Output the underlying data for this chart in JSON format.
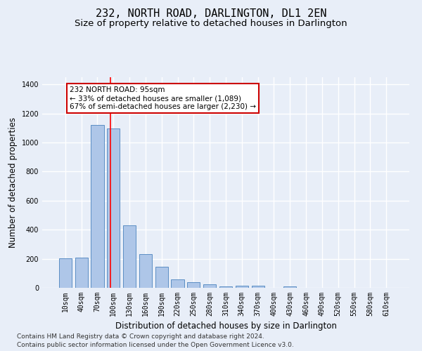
{
  "title": "232, NORTH ROAD, DARLINGTON, DL1 2EN",
  "subtitle": "Size of property relative to detached houses in Darlington",
  "xlabel": "Distribution of detached houses by size in Darlington",
  "ylabel": "Number of detached properties",
  "bar_color": "#aec6e8",
  "bar_edge_color": "#5b8ec4",
  "background_color": "#e8eef8",
  "grid_color": "#ffffff",
  "categories": [
    "10sqm",
    "40sqm",
    "70sqm",
    "100sqm",
    "130sqm",
    "160sqm",
    "190sqm",
    "220sqm",
    "250sqm",
    "280sqm",
    "310sqm",
    "340sqm",
    "370sqm",
    "400sqm",
    "430sqm",
    "460sqm",
    "490sqm",
    "520sqm",
    "550sqm",
    "580sqm",
    "610sqm"
  ],
  "values": [
    205,
    210,
    1120,
    1095,
    430,
    230,
    147,
    58,
    38,
    23,
    12,
    15,
    15,
    0,
    12,
    0,
    0,
    0,
    0,
    0,
    0
  ],
  "annotation_text": "232 NORTH ROAD: 95sqm\n← 33% of detached houses are smaller (1,089)\n67% of semi-detached houses are larger (2,230) →",
  "annotation_box_color": "#ffffff",
  "annotation_box_edge": "#cc0000",
  "ylim": [
    0,
    1450
  ],
  "yticks": [
    0,
    200,
    400,
    600,
    800,
    1000,
    1200,
    1400
  ],
  "footer1": "Contains HM Land Registry data © Crown copyright and database right 2024.",
  "footer2": "Contains public sector information licensed under the Open Government Licence v3.0.",
  "title_fontsize": 11,
  "subtitle_fontsize": 9.5,
  "axis_label_fontsize": 8.5,
  "tick_fontsize": 7,
  "annotation_fontsize": 7.5,
  "footer_fontsize": 6.5
}
